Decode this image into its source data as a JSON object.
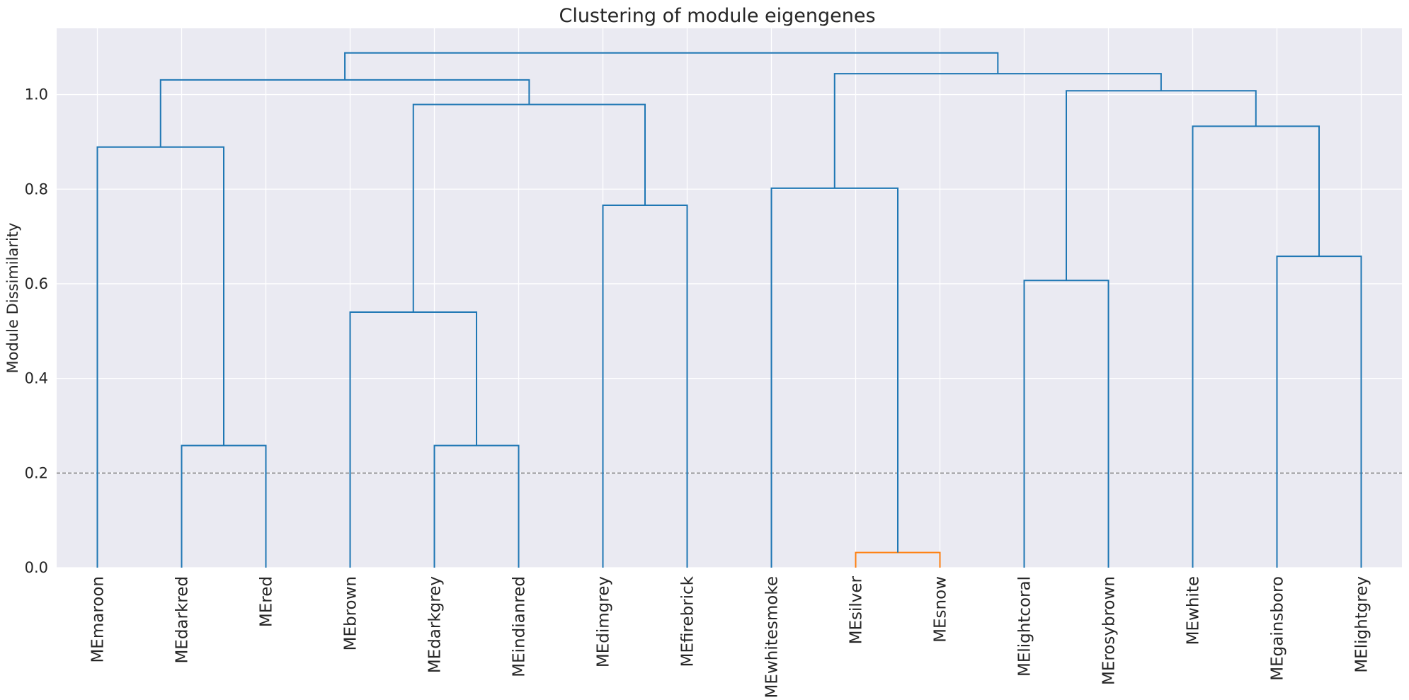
{
  "chart_data": {
    "type": "dendrogram",
    "title": "Clustering of module eigengenes",
    "xlabel": "",
    "ylabel": "Module Dissimilarity",
    "ylim": [
      0,
      1.14
    ],
    "yticks": [
      "0.0",
      "0.2",
      "0.4",
      "0.6",
      "0.8",
      "1.0"
    ],
    "grid": true,
    "threshold": 0.2,
    "leaves": [
      "MEmaroon",
      "MEdarkred",
      "MEred",
      "MEbrown",
      "MEdarkgrey",
      "MEindianred",
      "MEdimgrey",
      "MEfirebrick",
      "MEwhitesmoke",
      "MEsilver",
      "MEsnow",
      "MElightcoral",
      "MErosybrown",
      "MEwhite",
      "MEgainsboro",
      "MElightgrey"
    ],
    "links": [
      {
        "left": 9,
        "right": 10,
        "height": 0.032,
        "color": "#ff7f0e"
      },
      {
        "left": 1,
        "right": 2,
        "height": 0.258,
        "color": "#1f77b4"
      },
      {
        "left": 4,
        "right": 5,
        "height": 0.258,
        "color": "#1f77b4"
      },
      {
        "left": 3,
        "right": "n2",
        "height": 0.54,
        "color": "#1f77b4"
      },
      {
        "left": 11,
        "right": 12,
        "height": 0.607,
        "color": "#1f77b4"
      },
      {
        "left": 14,
        "right": 15,
        "height": 0.658,
        "color": "#1f77b4"
      },
      {
        "left": 6,
        "right": 7,
        "height": 0.766,
        "color": "#1f77b4"
      },
      {
        "left": 8,
        "right": "n0",
        "height": 0.802,
        "color": "#1f77b4"
      },
      {
        "left": 0,
        "right": "n1",
        "height": 0.889,
        "color": "#1f77b4"
      },
      {
        "left": 13,
        "right": "n5",
        "height": 0.933,
        "color": "#1f77b4"
      },
      {
        "left": "n3",
        "right": "n6",
        "height": 0.979,
        "color": "#1f77b4"
      },
      {
        "left": "n4",
        "right": "n9",
        "height": 1.008,
        "color": "#1f77b4"
      },
      {
        "left": "n8",
        "right": "n10",
        "height": 1.031,
        "color": "#1f77b4"
      },
      {
        "left": "n7",
        "right": "n11",
        "height": 1.044,
        "color": "#1f77b4"
      },
      {
        "left": "n12",
        "right": "n13",
        "height": 1.088,
        "color": "#1f77b4"
      }
    ],
    "colors": {
      "background": "#eaeaf2",
      "grid": "#ffffff",
      "threshold_line": "#808080",
      "text": "#262626"
    }
  }
}
